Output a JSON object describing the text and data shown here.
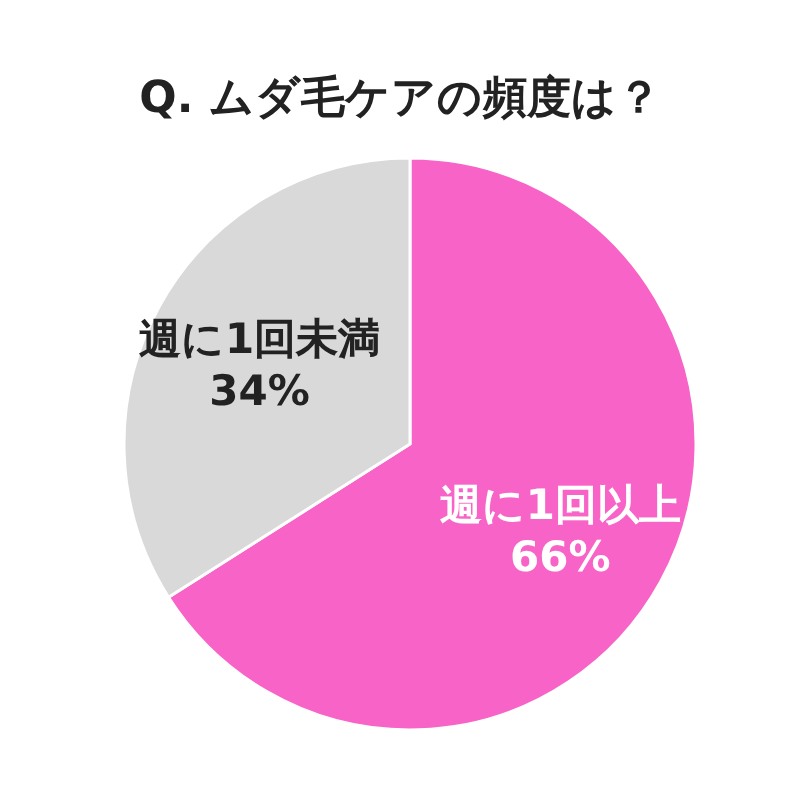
{
  "chart_data": {
    "type": "pie",
    "title": "Q. ムダ毛ケアの頻度は？",
    "categories": [
      "週に1回以上",
      "週に1回未満"
    ],
    "values": [
      66,
      34
    ],
    "value_labels": [
      "66%",
      "34%"
    ],
    "colors": [
      "#f763c6",
      "#d9d9d9"
    ]
  }
}
